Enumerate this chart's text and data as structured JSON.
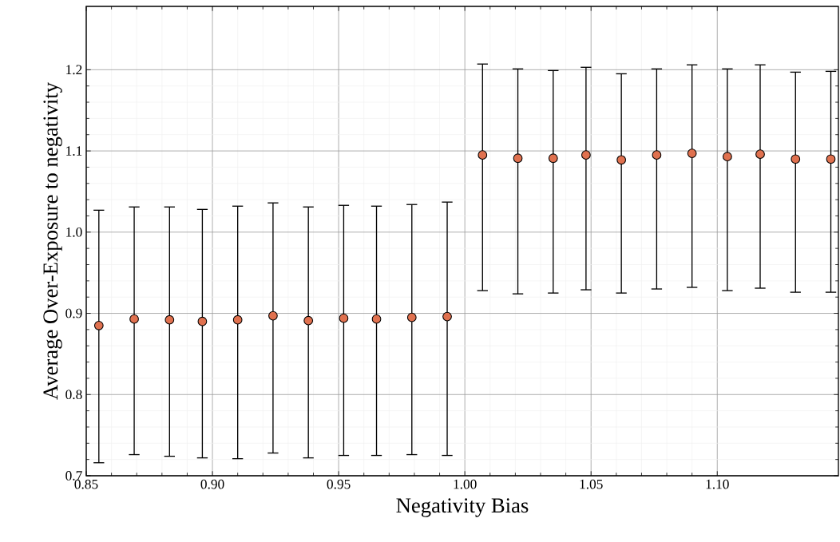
{
  "chart_data": {
    "type": "scatter",
    "xlabel": "Negativity Bias",
    "ylabel": "Average Over-Exposure to negativity",
    "x": [
      0.855,
      0.869,
      0.883,
      0.896,
      0.91,
      0.924,
      0.938,
      0.952,
      0.965,
      0.979,
      0.993,
      1.007,
      1.021,
      1.035,
      1.048,
      1.062,
      1.076,
      1.09,
      1.104,
      1.117,
      1.131,
      1.145
    ],
    "series": [
      {
        "color": "#e0714f",
        "values": [
          0.885,
          0.893,
          0.892,
          0.89,
          0.892,
          0.897,
          0.891,
          0.894,
          0.893,
          0.895,
          0.896,
          1.095,
          1.091,
          1.091,
          1.095,
          1.089,
          1.095,
          1.097,
          1.093,
          1.096,
          1.09,
          1.09
        ],
        "errors": [
          [
            0.716,
            1.027
          ],
          [
            0.726,
            1.031
          ],
          [
            0.724,
            1.031
          ],
          [
            0.722,
            1.028
          ],
          [
            0.721,
            1.032
          ],
          [
            0.728,
            1.036
          ],
          [
            0.722,
            1.031
          ],
          [
            0.725,
            1.033
          ],
          [
            0.725,
            1.032
          ],
          [
            0.726,
            1.034
          ],
          [
            0.725,
            1.037
          ],
          [
            0.928,
            1.207
          ],
          [
            0.924,
            1.201
          ],
          [
            0.925,
            1.199
          ],
          [
            0.929,
            1.203
          ],
          [
            0.925,
            1.195
          ],
          [
            0.93,
            1.201
          ],
          [
            0.932,
            1.206
          ],
          [
            0.928,
            1.201
          ],
          [
            0.931,
            1.206
          ],
          [
            0.926,
            1.197
          ],
          [
            0.926,
            1.198
          ]
        ]
      }
    ],
    "xlim": [
      0.85,
      1.148
    ],
    "ylim": [
      0.7,
      1.278
    ],
    "xticks": [
      {
        "value": 0.85,
        "label": "0.85"
      },
      {
        "value": 0.9,
        "label": "0.90"
      },
      {
        "value": 0.95,
        "label": "0.95"
      },
      {
        "value": 1.0,
        "label": "1.00"
      },
      {
        "value": 1.05,
        "label": "1.05"
      },
      {
        "value": 1.1,
        "label": "1.10"
      }
    ],
    "yticks": [
      {
        "value": 0.7,
        "label": "0.7"
      },
      {
        "value": 0.8,
        "label": "0.8"
      },
      {
        "value": 0.9,
        "label": "0.9"
      },
      {
        "value": 1.0,
        "label": "1.0"
      },
      {
        "value": 1.1,
        "label": "1.1"
      },
      {
        "value": 1.2,
        "label": "1.2"
      }
    ],
    "grid": true,
    "marker": "circle"
  }
}
